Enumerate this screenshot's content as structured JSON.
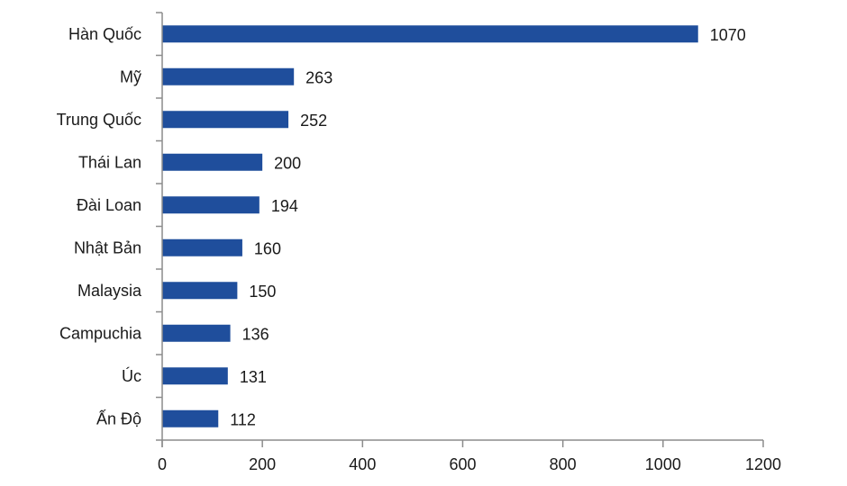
{
  "colors": {
    "bar": "#1f4e9c",
    "axis": "#8c8c8c",
    "text": "#1a1a1a"
  },
  "chart_data": {
    "type": "bar",
    "orientation": "horizontal",
    "title": "",
    "xlabel": "",
    "ylabel": "",
    "categories": [
      "Hàn Quốc",
      "Mỹ",
      "Trung Quốc",
      "Thái Lan",
      "Đài Loan",
      "Nhật Bản",
      "Malaysia",
      "Campuchia",
      "Úc",
      "Ấn Độ"
    ],
    "values": [
      1070,
      263,
      252,
      200,
      194,
      160,
      150,
      136,
      131,
      112
    ],
    "data_labels": [
      "1070",
      "263",
      "252",
      "200",
      "194",
      "160",
      "150",
      "136",
      "131",
      "112"
    ],
    "xlim": [
      0,
      1200
    ],
    "xticks": [
      0,
      200,
      400,
      600,
      800,
      1000,
      1200
    ],
    "xtick_labels": [
      "0",
      "200",
      "400",
      "600",
      "800",
      "1000",
      "1200"
    ],
    "grid": false,
    "legend": "none"
  }
}
